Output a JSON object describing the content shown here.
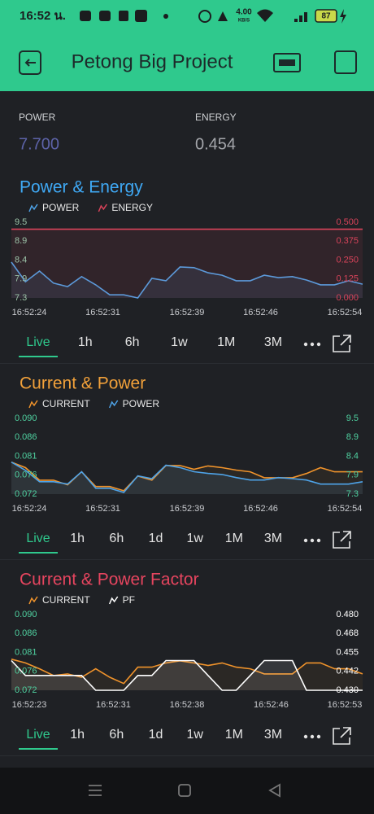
{
  "status_bar": {
    "time": "16:52 น.",
    "speed": "4.00",
    "speed_unit": "KB/S",
    "battery": "87"
  },
  "header": {
    "title": "Petong Big Project"
  },
  "displays": [
    {
      "label": "POWER",
      "value": "7.700",
      "color": "#5d63a8"
    },
    {
      "label": "ENERGY",
      "value": "0.454",
      "color": "#a4a6ab"
    }
  ],
  "charts": [
    {
      "type": "line",
      "title": "Power & Energy",
      "title_color": "#3fa9f5",
      "xticks": [
        "16:52:24",
        "16:52:31",
        "16:52:39",
        "16:52:46",
        "16:52:54"
      ],
      "ylim": [
        7.3,
        9.5
      ],
      "yticks": [
        7.3,
        {
          "value": 7.85,
          "label": "7.9"
        },
        8.4,
        {
          "value": 8.95,
          "label": "8.9"
        },
        9.5
      ],
      "ytick_color": "#9cc3a8",
      "y2lim": [
        0,
        0.5
      ],
      "y2ticks": [
        {
          "value": 0,
          "label": "0.000"
        },
        0.125,
        {
          "value": 0.25,
          "label": "0.250"
        },
        0.375,
        {
          "value": 0.5,
          "label": "0.500"
        }
      ],
      "y2tick_color": "#d9435a",
      "series": [
        {
          "name": "POWER",
          "color": "#4ea3e8",
          "axis": "y",
          "values": [
            8.34,
            7.77,
            8.08,
            7.73,
            7.63,
            7.92,
            7.68,
            7.39,
            7.39,
            7.3,
            7.87,
            7.8,
            8.2,
            8.18,
            8.03,
            7.96,
            7.8,
            7.8,
            7.96,
            7.89,
            7.92,
            7.82,
            7.68,
            7.68,
            7.8,
            7.7
          ]
        },
        {
          "name": "ENERGY",
          "color": "#d9435a",
          "axis": "y2",
          "values": [
            0.454,
            0.454,
            0.454,
            0.454,
            0.454,
            0.454,
            0.454,
            0.454,
            0.454,
            0.454,
            0.454,
            0.454,
            0.454,
            0.454,
            0.454,
            0.454,
            0.454,
            0.454,
            0.454,
            0.454,
            0.454,
            0.454,
            0.454,
            0.454,
            0.454,
            0.454
          ]
        }
      ],
      "ranges": [
        "Live",
        "1h",
        "6h",
        "1w",
        "1M",
        "3M"
      ]
    },
    {
      "type": "line",
      "title": "Current & Power",
      "title_color": "#f2a13a",
      "xticks": [
        "16:52:24",
        "16:52:31",
        "16:52:39",
        "16:52:46",
        "16:52:54"
      ],
      "ylim": [
        0.072,
        0.09
      ],
      "yticks": [
        0.072,
        {
          "value": 0.0765,
          "label": "0.076"
        },
        0.081,
        {
          "value": 0.0855,
          "label": "0.086"
        },
        {
          "value": 0.09,
          "label": "0.090"
        }
      ],
      "ytick_color": "#4fd1a0",
      "y2lim": [
        7.3,
        9.5
      ],
      "y2ticks": [
        7.3,
        {
          "value": 7.85,
          "label": "7.9"
        },
        8.4,
        {
          "value": 8.95,
          "label": "8.9"
        },
        9.5
      ],
      "y2tick_color": "#4fd1a0",
      "series": [
        {
          "name": "CURRENT",
          "color": "#f0932b",
          "axis": "y",
          "values": [
            0.0796,
            0.0783,
            0.0753,
            0.0753,
            0.0742,
            0.0773,
            0.0738,
            0.0738,
            0.0728,
            0.0763,
            0.0753,
            0.0788,
            0.0788,
            0.0779,
            0.0787,
            0.0783,
            0.0777,
            0.0773,
            0.0759,
            0.0759,
            0.0759,
            0.0769,
            0.0783,
            0.0773,
            0.0773,
            0.0773
          ]
        },
        {
          "name": "POWER",
          "color": "#4ea3e8",
          "axis": "y2",
          "values": [
            8.23,
            7.99,
            7.66,
            7.66,
            7.59,
            7.95,
            7.47,
            7.47,
            7.35,
            7.83,
            7.75,
            8.14,
            8.07,
            7.95,
            7.9,
            7.87,
            7.78,
            7.71,
            7.71,
            7.78,
            7.75,
            7.71,
            7.59,
            7.59,
            7.59,
            7.66
          ]
        }
      ],
      "ranges": [
        "Live",
        "1h",
        "6h",
        "1d",
        "1w",
        "1M",
        "3M"
      ]
    },
    {
      "type": "line",
      "title": "Current & Power Factor",
      "title_color": "#e6455f",
      "xticks": [
        "16:52:23",
        "16:52:31",
        "16:52:38",
        "16:52:46",
        "16:52:53"
      ],
      "ylim": [
        0.072,
        0.09
      ],
      "yticks": [
        0.072,
        {
          "value": 0.0765,
          "label": "0.076"
        },
        0.081,
        {
          "value": 0.0855,
          "label": "0.086"
        },
        {
          "value": 0.09,
          "label": "0.090"
        }
      ],
      "ytick_color": "#4fd1a0",
      "y2lim": [
        0.43,
        0.48
      ],
      "y2ticks": [
        {
          "value": 0.43,
          "label": "0.430"
        },
        {
          "value": 0.4425,
          "label": "0.442"
        },
        0.455,
        {
          "value": 0.4675,
          "label": "0.468"
        },
        {
          "value": 0.48,
          "label": "0.480"
        }
      ],
      "y2tick_color": "#ffffff",
      "series": [
        {
          "name": "CURRENT",
          "color": "#f0932b",
          "axis": "y",
          "values": [
            0.0794,
            0.0785,
            0.0771,
            0.0755,
            0.0759,
            0.0751,
            0.0771,
            0.0751,
            0.0736,
            0.0775,
            0.0775,
            0.0785,
            0.079,
            0.0785,
            0.0779,
            0.0785,
            0.0775,
            0.0771,
            0.0759,
            0.0759,
            0.0759,
            0.0785,
            0.0785,
            0.0771,
            0.0771,
            0.0759
          ]
        },
        {
          "name": "PF",
          "color": "#ffffff",
          "axis": "y2",
          "values": [
            0.4496,
            0.4398,
            0.4398,
            0.4398,
            0.4398,
            0.4398,
            0.43,
            0.43,
            0.43,
            0.4398,
            0.4398,
            0.4496,
            0.4496,
            0.4496,
            0.4398,
            0.43,
            0.43,
            0.4398,
            0.4496,
            0.4496,
            0.4496,
            0.43,
            0.43,
            0.43,
            0.43,
            0.43
          ]
        }
      ],
      "ranges": [
        "Live",
        "1h",
        "6h",
        "1d",
        "1w",
        "1M",
        "3M"
      ]
    }
  ]
}
